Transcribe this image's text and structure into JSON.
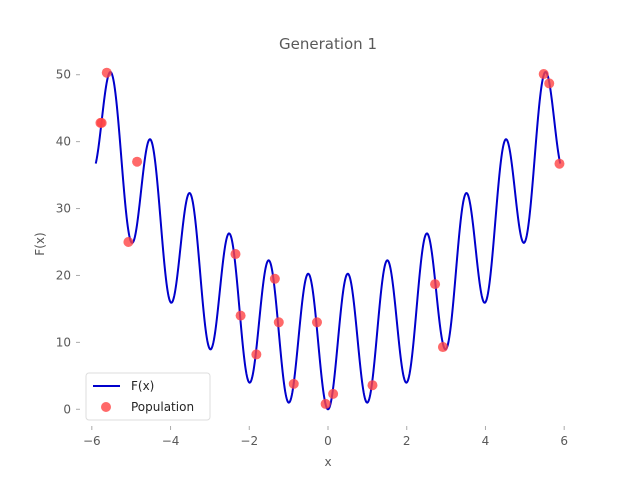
{
  "chart_data": {
    "type": "line",
    "title": "Generation 1",
    "xlabel": "x",
    "ylabel": "F(x)",
    "xlim": [
      -6.3,
      6.3
    ],
    "ylim": [
      -2.5,
      52.5
    ],
    "xticks": [
      -6,
      -4,
      -2,
      0,
      2,
      4,
      6
    ],
    "yticks": [
      0,
      10,
      20,
      30,
      40,
      50
    ],
    "grid": false,
    "legend_position": "lower-left",
    "series": [
      {
        "name": "F(x)",
        "kind": "line",
        "color": "#0000cc",
        "function": "x^2 + 10 - 10*cos(2*pi*x)",
        "x_range": [
          -5.9,
          5.9
        ]
      },
      {
        "name": "Population",
        "kind": "scatter",
        "color": "#ff4444",
        "points": [
          {
            "x": -5.62,
            "y": 50.3
          },
          {
            "x": -5.78,
            "y": 42.8
          },
          {
            "x": -5.75,
            "y": 42.8
          },
          {
            "x": -4.85,
            "y": 37.0
          },
          {
            "x": -5.07,
            "y": 25.0
          },
          {
            "x": -2.35,
            "y": 23.2
          },
          {
            "x": -2.22,
            "y": 14.0
          },
          {
            "x": -1.82,
            "y": 8.2
          },
          {
            "x": -1.35,
            "y": 19.5
          },
          {
            "x": -1.25,
            "y": 13.0
          },
          {
            "x": -0.87,
            "y": 3.8
          },
          {
            "x": -0.28,
            "y": 13.0
          },
          {
            "x": -0.06,
            "y": 0.8
          },
          {
            "x": 0.13,
            "y": 2.3
          },
          {
            "x": 1.13,
            "y": 3.6
          },
          {
            "x": 2.72,
            "y": 18.7
          },
          {
            "x": 2.92,
            "y": 9.3
          },
          {
            "x": 5.48,
            "y": 50.1
          },
          {
            "x": 5.62,
            "y": 48.7
          },
          {
            "x": 5.88,
            "y": 36.7
          }
        ]
      }
    ]
  }
}
